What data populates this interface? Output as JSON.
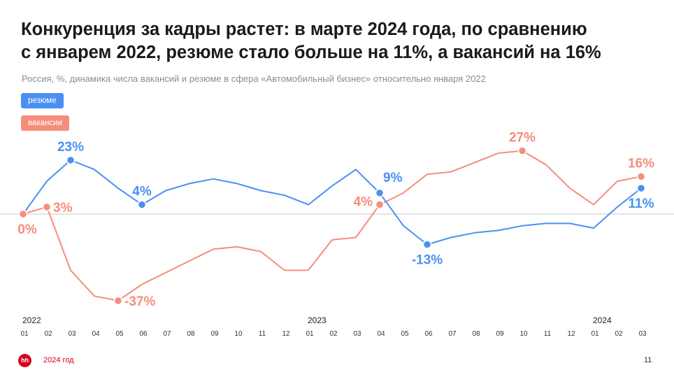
{
  "header": {
    "title_line1": "Конкуренция за кадры растет: в марте 2024 года, по сравнению",
    "title_line2": "с январем 2022, резюме стало больше на 11%, а вакансий на 16%",
    "subtitle": "Россия, %, динамика числа вакансий и резюме в сфера «Автомобильный бизнес» относительно января 2022"
  },
  "legend": [
    {
      "label": "резюме",
      "color": "#4a90f2"
    },
    {
      "label": "вакансии",
      "color": "#f58d7c"
    }
  ],
  "footer": {
    "logo_text": "hh",
    "source": "2024 год",
    "page": "11"
  },
  "chart_data": {
    "type": "line",
    "x": [
      "01",
      "02",
      "03",
      "04",
      "05",
      "06",
      "07",
      "08",
      "09",
      "10",
      "11",
      "12",
      "01",
      "02",
      "03",
      "04",
      "05",
      "06",
      "07",
      "08",
      "09",
      "10",
      "11",
      "12",
      "01",
      "02",
      "03"
    ],
    "year_labels": [
      {
        "index": 0,
        "label": "2022"
      },
      {
        "index": 12,
        "label": "2023"
      },
      {
        "index": 24,
        "label": "2024"
      }
    ],
    "ylim": [
      -45,
      30
    ],
    "baseline": 0,
    "series": [
      {
        "name": "резюме",
        "color": "#4a90f2",
        "values": [
          0,
          14,
          23,
          19,
          11,
          4,
          10,
          13,
          15,
          13,
          10,
          8,
          4,
          12,
          19,
          9,
          -5,
          -13,
          -10,
          -8,
          -7,
          -5,
          -4,
          -4,
          -6,
          3,
          11
        ],
        "labels": [
          {
            "index": 2,
            "text": "23%",
            "pos": "above"
          },
          {
            "index": 5,
            "text": "4%",
            "pos": "above"
          },
          {
            "index": 15,
            "text": "9%",
            "pos": "above-right"
          },
          {
            "index": 17,
            "text": "-13%",
            "pos": "below"
          },
          {
            "index": 26,
            "text": "11%",
            "pos": "below"
          }
        ]
      },
      {
        "name": "вакансии",
        "color": "#f58d7c",
        "values": [
          0,
          3,
          -24,
          -35,
          -37,
          -30,
          -25,
          -20,
          -15,
          -14,
          -16,
          -24,
          -24,
          -11,
          -10,
          4,
          9,
          17,
          18,
          22,
          26,
          27,
          21,
          11,
          4,
          14,
          16
        ],
        "labels": [
          {
            "index": 0,
            "text": "0%",
            "pos": "below"
          },
          {
            "index": 1,
            "text": "3%",
            "pos": "right"
          },
          {
            "index": 4,
            "text": "-37%",
            "pos": "right"
          },
          {
            "index": 15,
            "text": "4%",
            "pos": "left"
          },
          {
            "index": 21,
            "text": "27%",
            "pos": "above"
          },
          {
            "index": 26,
            "text": "16%",
            "pos": "above"
          }
        ]
      }
    ]
  }
}
